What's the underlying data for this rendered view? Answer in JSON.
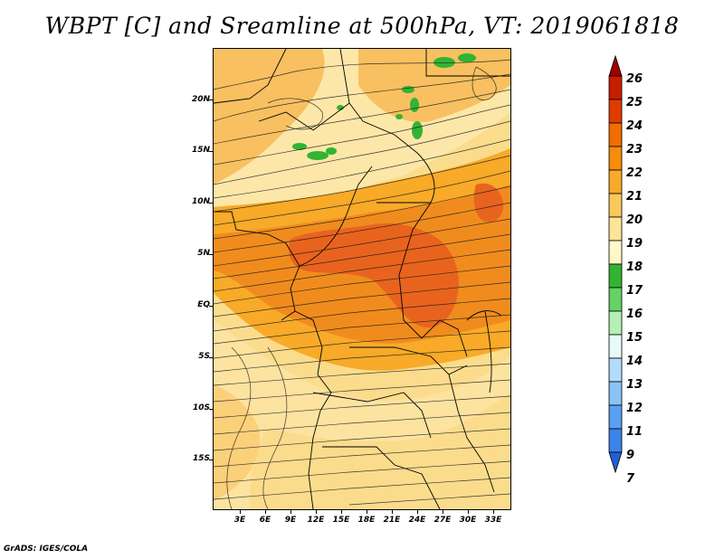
{
  "title": "WBPT [C] and Sreamline at 500hPa, VT: 2019061818",
  "footer": "GrADS: IGES/COLA",
  "y_axis": {
    "labels": [
      "20N",
      "15N",
      "10N",
      "5N",
      "EQ",
      "5S",
      "10S",
      "15S"
    ]
  },
  "x_axis": {
    "labels": [
      "3E",
      "6E",
      "9E",
      "12E",
      "15E",
      "18E",
      "21E",
      "24E",
      "27E",
      "30E",
      "33E"
    ]
  },
  "colorbar": {
    "labels": [
      "26",
      "25",
      "24",
      "23",
      "22",
      "21",
      "20",
      "19",
      "18",
      "17",
      "16",
      "15",
      "14",
      "13",
      "12",
      "11",
      "9",
      "7"
    ],
    "colors": [
      "#a00000",
      "#c81e00",
      "#e13c00",
      "#f06e00",
      "#f58c0a",
      "#f8aa28",
      "#fbc85a",
      "#fde498",
      "#fff7c8",
      "#32b432",
      "#64d264",
      "#b4f0b4",
      "#e8faf8",
      "#b4dcfa",
      "#8cc3f5",
      "#5aa0f0",
      "#3c82eb",
      "#1e60d8"
    ]
  },
  "map_colors": {
    "background": "#fbdc8c",
    "light_band": "#fde7a8",
    "orange": "#f8aa28",
    "dark_orange": "#f08c1e",
    "red_orange": "#e8641e",
    "green": "#32b432"
  }
}
